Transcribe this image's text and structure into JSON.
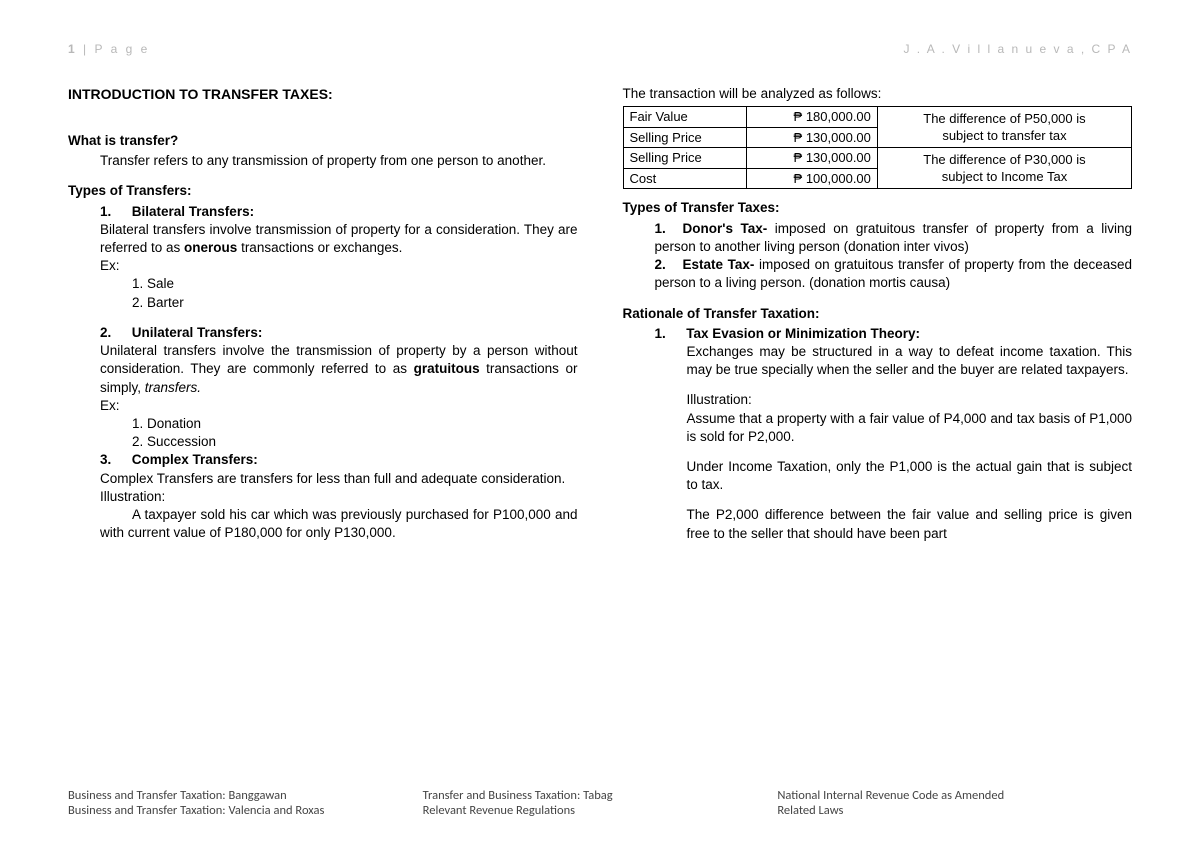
{
  "header": {
    "pagenum": "1",
    "pagelabel": "P a g e",
    "author": "J . A .   V i l l a n u e v a ,   C P A"
  },
  "left": {
    "title": "INTRODUCTION TO TRANSFER TAXES:",
    "q_what": "What is transfer?",
    "what_body": "Transfer refers to any transmission of property from one person to another.",
    "types_h": "Types of Transfers:",
    "t1_num": "1.",
    "t1_title": "Bilateral Transfers:",
    "t1_body_a": "Bilateral transfers involve transmission of property for a consideration. They are referred to as ",
    "t1_body_bold": "onerous",
    "t1_body_b": " transactions or exchanges.",
    "ex_label": "Ex:",
    "t1_ex1": "1. Sale",
    "t1_ex2": "2. Barter",
    "t2_num": "2.",
    "t2_title": "Unilateral Transfers:",
    "t2_body_a": "Unilateral transfers involve the transmission of property by a person without consideration. They are commonly referred to as ",
    "t2_body_bold": "gratuitous",
    "t2_body_b": " transactions or simply, ",
    "t2_body_ital": "transfers.",
    "t2_ex1": "1. Donation",
    "t2_ex2": "2. Succession",
    "t3_num": "3.",
    "t3_title": "Complex Transfers:",
    "t3_body": "Complex Transfers are transfers for less than full and adequate consideration.",
    "illus_label": "Illustration:",
    "t3_illus": "A taxpayer sold his car which was previously purchased for P100,000 and with current value of P180,000 for only P130,000."
  },
  "right": {
    "anal_intro": "The transaction will be analyzed as follows:",
    "tbl": {
      "r1c1": "Fair Value",
      "r1c2": "₱ 180,000.00",
      "r1c3": "The difference of P50,000 is",
      "r2c1": "Selling Price",
      "r2c2": "₱ 130,000.00",
      "r2c3": "subject to transfer tax",
      "r3c1": "Selling Price",
      "r3c2": "₱ 130,000.00",
      "r3c3": "The difference of P30,000 is",
      "r4c1": "Cost",
      "r4c2": "₱ 100,000.00",
      "r4c3": "subject to Income Tax"
    },
    "types_h": "Types of Transfer Taxes:",
    "tt1_num": "1.",
    "tt1_title": "Donor's Tax-",
    "tt1_body": " imposed on gratuitous transfer of property from a living person to another living person (donation inter vivos)",
    "tt2_num": "2.",
    "tt2_title": "Estate Tax-",
    "tt2_body": " imposed on gratuitous transfer of property from the deceased person to a living person. (donation mortis causa)",
    "rat_h": "Rationale of Transfer Taxation:",
    "r1_num": "1.",
    "r1_title": "Tax Evasion or Minimization Theory:",
    "r1_body": "Exchanges may be structured in a way to defeat income taxation. This may be true specially when the seller and the buyer are related taxpayers.",
    "r1_illus_label": "Illustration:",
    "r1_illus": "Assume that a property with a fair value of P4,000 and tax basis of P1,000 is sold for P2,000.",
    "r1_p2": "Under Income Taxation, only the P1,000 is the actual gain that is subject to tax.",
    "r1_p3": "The P2,000 difference between the fair value and selling price is given free to the seller that should have been part"
  },
  "footer": {
    "c1a": "Business and Transfer Taxation: Banggawan",
    "c1b": "Business and Transfer Taxation: Valencia and Roxas",
    "c2a": "Transfer and Business Taxation: Tabag",
    "c2b": "Relevant Revenue Regulations",
    "c3a": "National Internal Revenue Code as Amended",
    "c3b": "Related Laws"
  }
}
